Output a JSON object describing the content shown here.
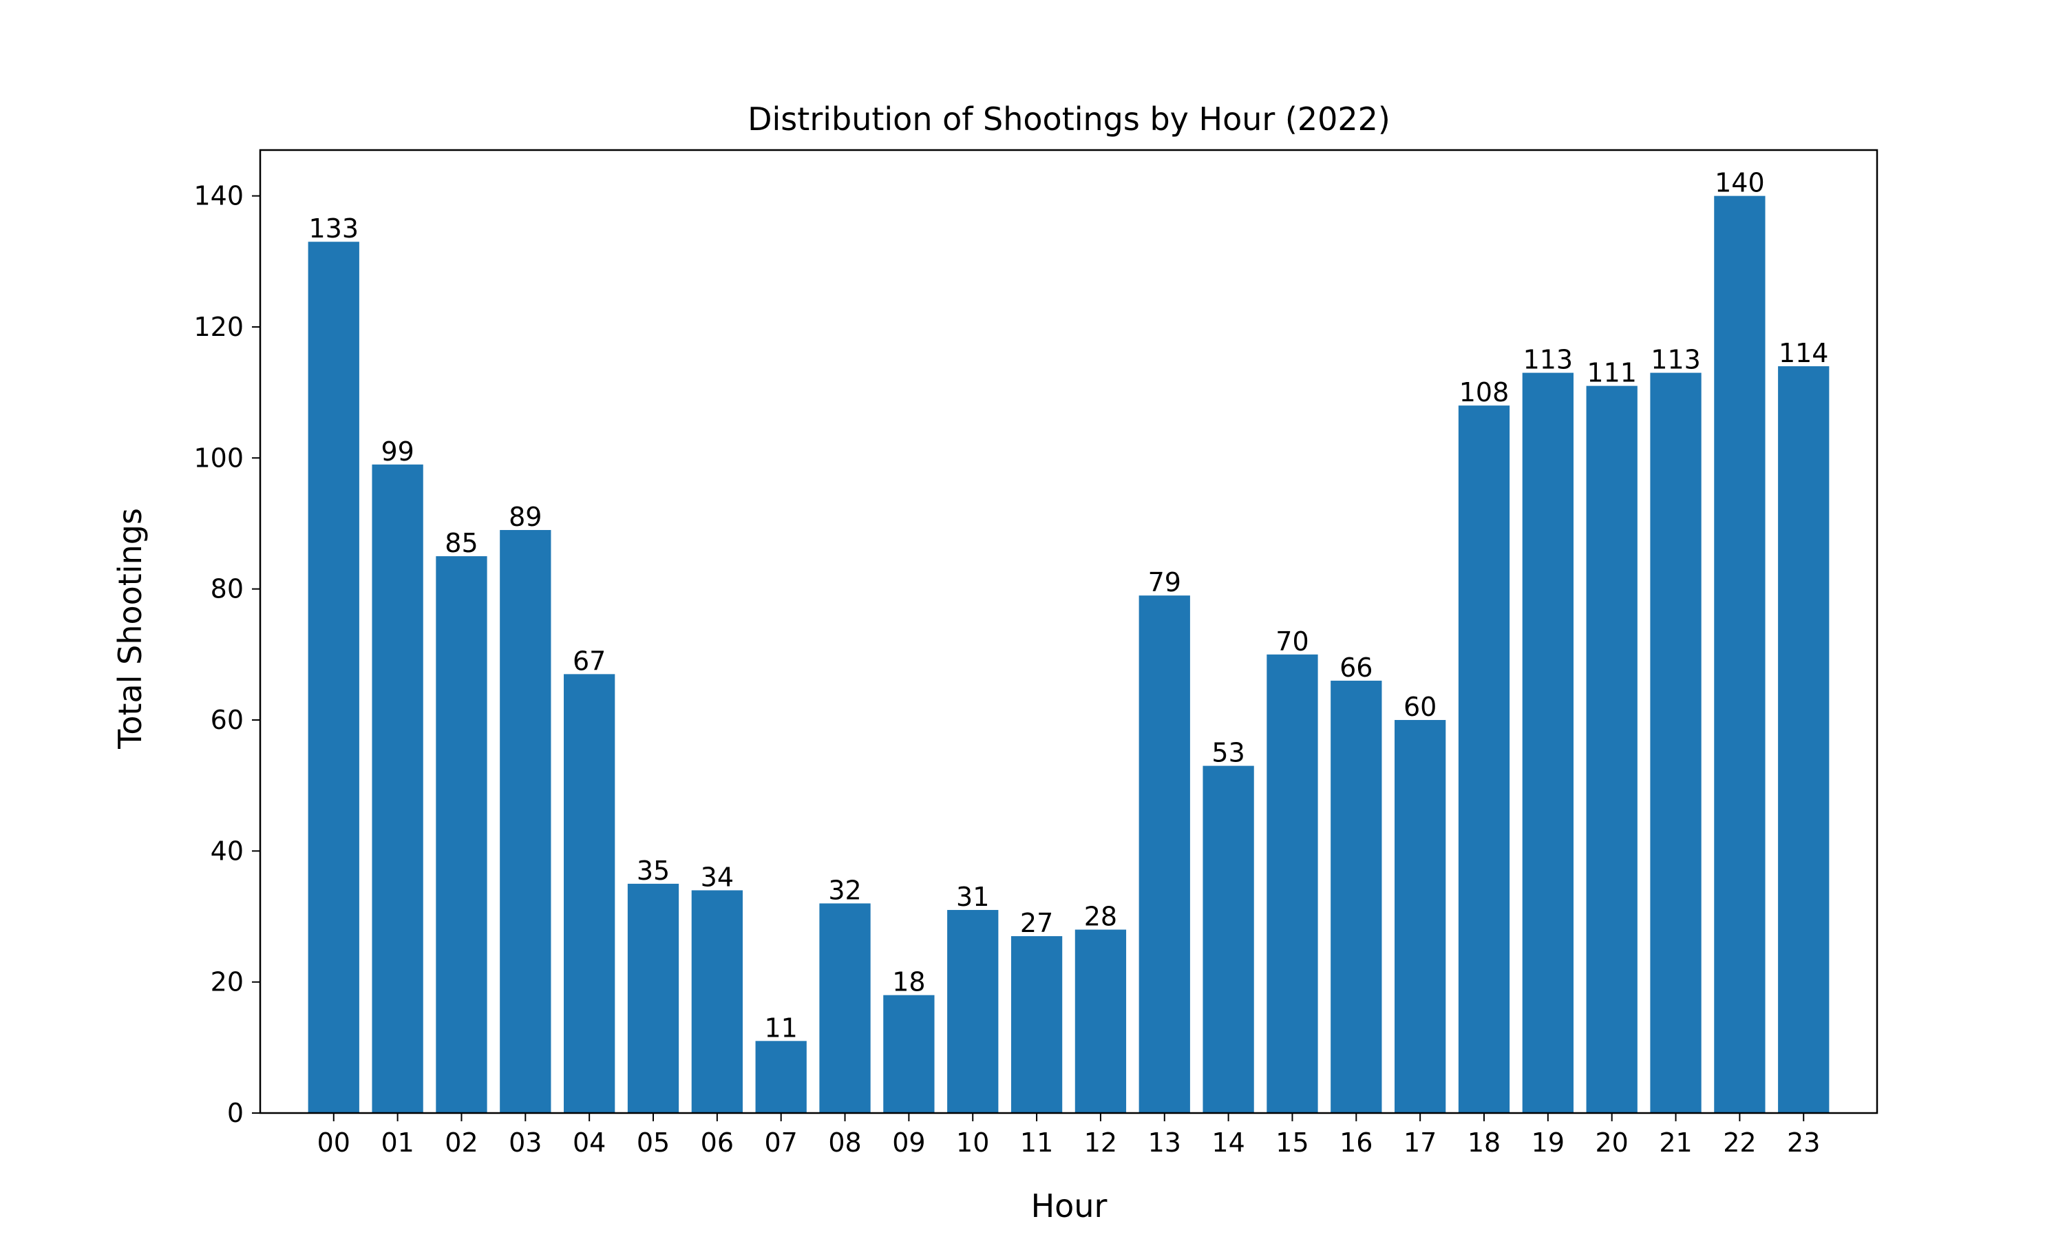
{
  "chart_data": {
    "type": "bar",
    "title": "Distribution of Shootings by Hour (2022)",
    "xlabel": "Hour",
    "ylabel": "Total Shootings",
    "categories": [
      "00",
      "01",
      "02",
      "03",
      "04",
      "05",
      "06",
      "07",
      "08",
      "09",
      "10",
      "11",
      "12",
      "13",
      "14",
      "15",
      "16",
      "17",
      "18",
      "19",
      "20",
      "21",
      "22",
      "23"
    ],
    "values": [
      133,
      99,
      85,
      89,
      67,
      35,
      34,
      11,
      32,
      18,
      31,
      27,
      28,
      79,
      53,
      70,
      66,
      60,
      108,
      113,
      111,
      113,
      140,
      114
    ],
    "yticks": [
      0,
      20,
      40,
      60,
      80,
      100,
      120,
      140
    ],
    "ylim": [
      0,
      147
    ],
    "bar_color": "#1f77b4",
    "grid": false,
    "data_labels": true
  }
}
